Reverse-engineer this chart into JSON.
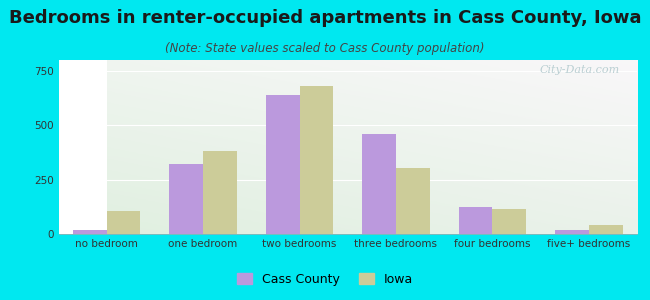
{
  "title": "Bedrooms in renter-occupied apartments in Cass County, Iowa",
  "subtitle": "(Note: State values scaled to Cass County population)",
  "categories": [
    "no bedroom",
    "one bedroom",
    "two bedrooms",
    "three bedrooms",
    "four bedrooms",
    "five+ bedrooms"
  ],
  "cass_county": [
    20,
    320,
    640,
    460,
    125,
    20
  ],
  "iowa": [
    105,
    380,
    680,
    305,
    115,
    42
  ],
  "cass_color": "#bb99dd",
  "iowa_color": "#cccc99",
  "background_outer": "#00e8f0",
  "ylim": [
    0,
    800
  ],
  "yticks": [
    0,
    250,
    500,
    750
  ],
  "bar_width": 0.35,
  "title_fontsize": 13,
  "subtitle_fontsize": 8.5,
  "tick_fontsize": 7.5,
  "legend_fontsize": 9,
  "watermark_text": "City-Data.com",
  "watermark_color": "#b0c8cc"
}
